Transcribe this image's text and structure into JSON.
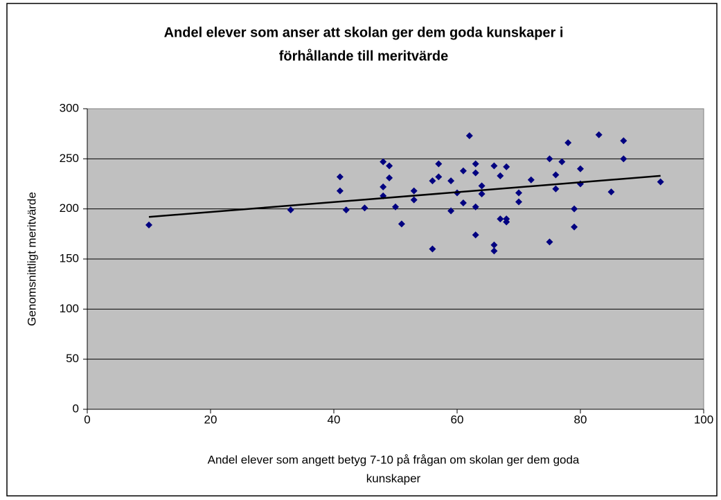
{
  "chart_data": {
    "type": "scatter",
    "title": [
      "Andel elever som anser att skolan ger dem goda kunskaper i",
      "förhållande till meritvärde"
    ],
    "x_label": [
      "Andel elever som angett betyg 7-10 på frågan om skolan ger dem goda",
      "kunskaper"
    ],
    "y_label": "Genomsnittligt meritvärde",
    "color": "#000080",
    "x": [
      10,
      33,
      41,
      41,
      42,
      45,
      48,
      48,
      48,
      49,
      49,
      50,
      51,
      53,
      53,
      56,
      56,
      57,
      57,
      59,
      59,
      60,
      61,
      61,
      62,
      63,
      63,
      63,
      63,
      64,
      64,
      66,
      66,
      66,
      67,
      67,
      68,
      68,
      68,
      70,
      70,
      72,
      75,
      75,
      76,
      76,
      77,
      78,
      79,
      79,
      80,
      80,
      85,
      83,
      87,
      87,
      93
    ],
    "values": [
      184,
      199,
      232,
      218,
      199,
      201,
      247,
      222,
      213,
      243,
      231,
      202,
      185,
      218,
      209,
      228,
      160,
      245,
      232,
      228,
      198,
      216,
      238,
      206,
      273,
      245,
      236,
      202,
      174,
      223,
      215,
      243,
      164,
      158,
      233,
      190,
      242,
      190,
      187,
      216,
      207,
      229,
      250,
      167,
      234,
      220,
      247,
      266,
      200,
      182,
      240,
      225,
      217,
      274,
      268,
      250,
      227
    ],
    "trendline": {
      "x": [
        10,
        93
      ],
      "values": [
        192,
        233
      ],
      "color": "#000000"
    },
    "xlim": [
      0,
      100
    ],
    "xticks": [
      0,
      20,
      40,
      60,
      80,
      100
    ],
    "ylim": [
      0,
      300
    ],
    "yticks": [
      0,
      50,
      100,
      150,
      200,
      250,
      300
    ],
    "grid": true
  }
}
